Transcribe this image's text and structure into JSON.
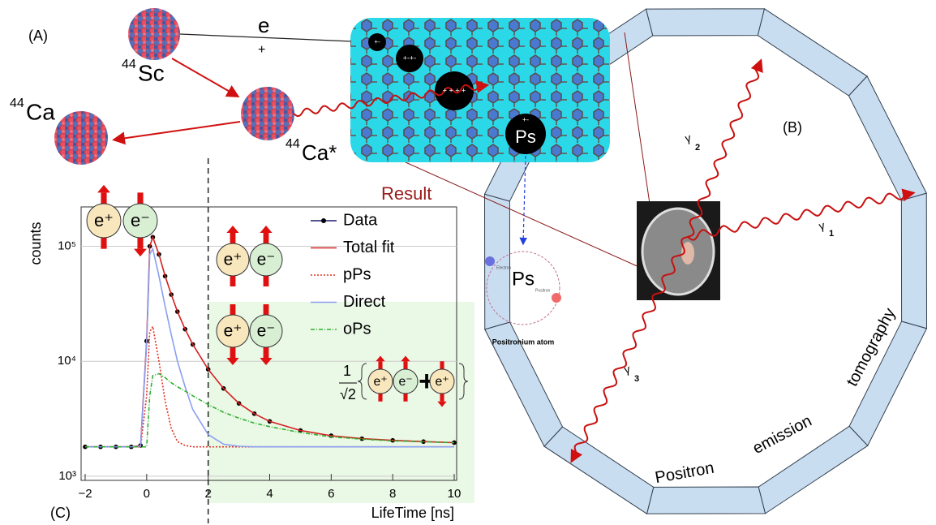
{
  "panel_a": {
    "label": "(A)",
    "positron": {
      "symbol": "e",
      "charge": "+"
    },
    "scandium": {
      "mass": "44",
      "symbol": "Sc"
    },
    "calcium_excited": {
      "mass": "44",
      "symbol": "Ca*"
    },
    "calcium": {
      "mass": "44",
      "symbol": "Ca"
    },
    "ps_ball": {
      "symbol": "Ps",
      "charges": "+-"
    },
    "charge_balls": [
      "+-",
      "+-+-",
      "+ + + +"
    ]
  },
  "panel_b": {
    "label": "(B)",
    "gammas": [
      {
        "symbol": "γ",
        "index": "1"
      },
      {
        "symbol": "γ",
        "index": "2"
      },
      {
        "symbol": "γ",
        "index": "3"
      }
    ],
    "ring_words": [
      "Positron",
      "emission",
      "tomography"
    ]
  },
  "ps_inset": {
    "label": "Ps",
    "electron": "Electron",
    "positron": "Positron",
    "caption": "Positronium atom"
  },
  "chart_data": {
    "type": "line",
    "title": "Result",
    "label": "(C)",
    "xlabel": "LifeTime [ns]",
    "ylabel": "counts",
    "log_y": true,
    "grid": true,
    "vline": 2,
    "xlim": [
      -2,
      10
    ],
    "ylim": [
      920,
      220000
    ],
    "xticks": [
      {
        "value": -2,
        "label": "−2"
      },
      0,
      2,
      4,
      6,
      8,
      10
    ],
    "yticks": [
      {
        "value": 1000,
        "label": "10³"
      },
      {
        "value": 10000,
        "label": "10⁴"
      },
      {
        "value": 100000,
        "label": "10⁵"
      }
    ],
    "x": [
      -2,
      -1.5,
      -1,
      -0.5,
      -0.2,
      0,
      0.1,
      0.2,
      0.4,
      0.6,
      0.8,
      1,
      1.25,
      1.5,
      2,
      2.5,
      3,
      3.5,
      4,
      5,
      6,
      7,
      8,
      9,
      10
    ],
    "series": [
      {
        "name": "Data",
        "color": "#1a1a6e",
        "marker": true,
        "values": [
          1800,
          1800,
          1800,
          1800,
          1850,
          15000,
          100000,
          120000,
          85000,
          55000,
          38000,
          27000,
          19000,
          14000,
          8500,
          5800,
          4300,
          3500,
          3000,
          2500,
          2250,
          2120,
          2050,
          2000,
          1960
        ]
      },
      {
        "name": "Total fit",
        "color": "#d42020",
        "dash": "none",
        "values": [
          1800,
          1800,
          1800,
          1800,
          1850,
          15000,
          100000,
          120000,
          85000,
          55000,
          38000,
          27000,
          19000,
          14000,
          8500,
          5800,
          4300,
          3500,
          3000,
          2500,
          2250,
          2120,
          2050,
          2000,
          1960
        ]
      },
      {
        "name": "pPs",
        "color": "#e03020",
        "dash": "2 2",
        "values": [
          1800,
          1800,
          1800,
          1800,
          1800,
          5000,
          18000,
          20000,
          10000,
          4500,
          2600,
          2000,
          1850,
          1800,
          1800,
          1800,
          1800,
          1800,
          1800,
          1800,
          1800,
          1800,
          1800,
          1800,
          1800
        ]
      },
      {
        "name": "Direct",
        "color": "#8a9ef0",
        "dash": "none",
        "values": [
          1800,
          1800,
          1800,
          1800,
          1820,
          14000,
          85000,
          95000,
          55000,
          30000,
          17000,
          10000,
          6000,
          3800,
          2300,
          1900,
          1820,
          1800,
          1800,
          1800,
          1800,
          1800,
          1800,
          1800,
          1800
        ]
      },
      {
        "name": "oPs",
        "color": "#30b030",
        "dash": "5 2 1 2",
        "values": [
          1800,
          1800,
          1800,
          1800,
          1800,
          1800,
          5000,
          7500,
          7800,
          7200,
          6500,
          6000,
          5500,
          5000,
          4200,
          3600,
          3200,
          2900,
          2700,
          2400,
          2200,
          2100,
          2030,
          1990,
          1960
        ]
      }
    ],
    "spin": {
      "positron": "e⁺",
      "electron": "e⁻",
      "norm_num": "1",
      "norm_den": "√2",
      "plus": "+"
    }
  }
}
